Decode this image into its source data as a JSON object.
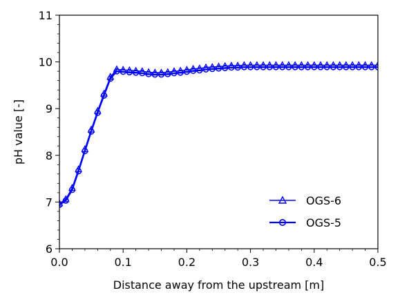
{
  "chart_data": {
    "type": "line",
    "title": "",
    "xlabel": "Distance away from the upstream [m]",
    "ylabel": "pH value [-]",
    "xlim": [
      0,
      0.5
    ],
    "ylim": [
      6,
      11
    ],
    "xticks": [
      0.0,
      0.1,
      0.2,
      0.3,
      0.4,
      0.5
    ],
    "xtick_labels": [
      "0.0",
      "0.1",
      "0.2",
      "0.3",
      "0.4",
      "0.5"
    ],
    "yticks": [
      6,
      7,
      8,
      9,
      10,
      11
    ],
    "ytick_labels": [
      "6",
      "7",
      "8",
      "9",
      "10",
      "11"
    ],
    "grid": false,
    "legend_position": "lower-right",
    "color": "#0000ff",
    "series": [
      {
        "name": "OGS-6",
        "marker": "triangle",
        "x": [
          0.0,
          0.01,
          0.02,
          0.03,
          0.04,
          0.05,
          0.06,
          0.07,
          0.08,
          0.09,
          0.1,
          0.11,
          0.12,
          0.13,
          0.14,
          0.15,
          0.16,
          0.17,
          0.18,
          0.19,
          0.2,
          0.21,
          0.22,
          0.23,
          0.24,
          0.25,
          0.26,
          0.27,
          0.28,
          0.29,
          0.3,
          0.31,
          0.32,
          0.33,
          0.34,
          0.35,
          0.36,
          0.37,
          0.38,
          0.39,
          0.4,
          0.41,
          0.42,
          0.43,
          0.44,
          0.45,
          0.46,
          0.47,
          0.48,
          0.49,
          0.5
        ],
        "y": [
          6.97,
          7.06,
          7.3,
          7.7,
          8.13,
          8.55,
          8.95,
          9.32,
          9.68,
          9.84,
          9.83,
          9.82,
          9.81,
          9.8,
          9.78,
          9.77,
          9.77,
          9.78,
          9.8,
          9.81,
          9.83,
          9.85,
          9.86,
          9.88,
          9.89,
          9.9,
          9.91,
          9.92,
          9.92,
          9.93,
          9.93,
          9.93,
          9.93,
          9.93,
          9.93,
          9.93,
          9.93,
          9.93,
          9.93,
          9.93,
          9.93,
          9.93,
          9.93,
          9.93,
          9.93,
          9.93,
          9.93,
          9.93,
          9.93,
          9.93,
          9.93
        ]
      },
      {
        "name": "OGS-5",
        "marker": "circle",
        "x": [
          0.0,
          0.01,
          0.02,
          0.03,
          0.04,
          0.05,
          0.06,
          0.07,
          0.08,
          0.09,
          0.1,
          0.11,
          0.12,
          0.13,
          0.14,
          0.15,
          0.16,
          0.17,
          0.18,
          0.19,
          0.2,
          0.21,
          0.22,
          0.23,
          0.24,
          0.25,
          0.26,
          0.27,
          0.28,
          0.29,
          0.3,
          0.31,
          0.32,
          0.33,
          0.34,
          0.35,
          0.36,
          0.37,
          0.38,
          0.39,
          0.4,
          0.41,
          0.42,
          0.43,
          0.44,
          0.45,
          0.46,
          0.47,
          0.48,
          0.49,
          0.5
        ],
        "y": [
          6.94,
          7.03,
          7.26,
          7.66,
          8.09,
          8.51,
          8.91,
          9.28,
          9.64,
          9.8,
          9.79,
          9.78,
          9.77,
          9.76,
          9.74,
          9.73,
          9.73,
          9.74,
          9.76,
          9.77,
          9.79,
          9.81,
          9.82,
          9.84,
          9.85,
          9.86,
          9.87,
          9.88,
          9.88,
          9.89,
          9.89,
          9.89,
          9.89,
          9.89,
          9.89,
          9.89,
          9.89,
          9.89,
          9.89,
          9.89,
          9.89,
          9.89,
          9.89,
          9.89,
          9.89,
          9.89,
          9.89,
          9.89,
          9.89,
          9.89,
          9.89
        ]
      }
    ]
  }
}
